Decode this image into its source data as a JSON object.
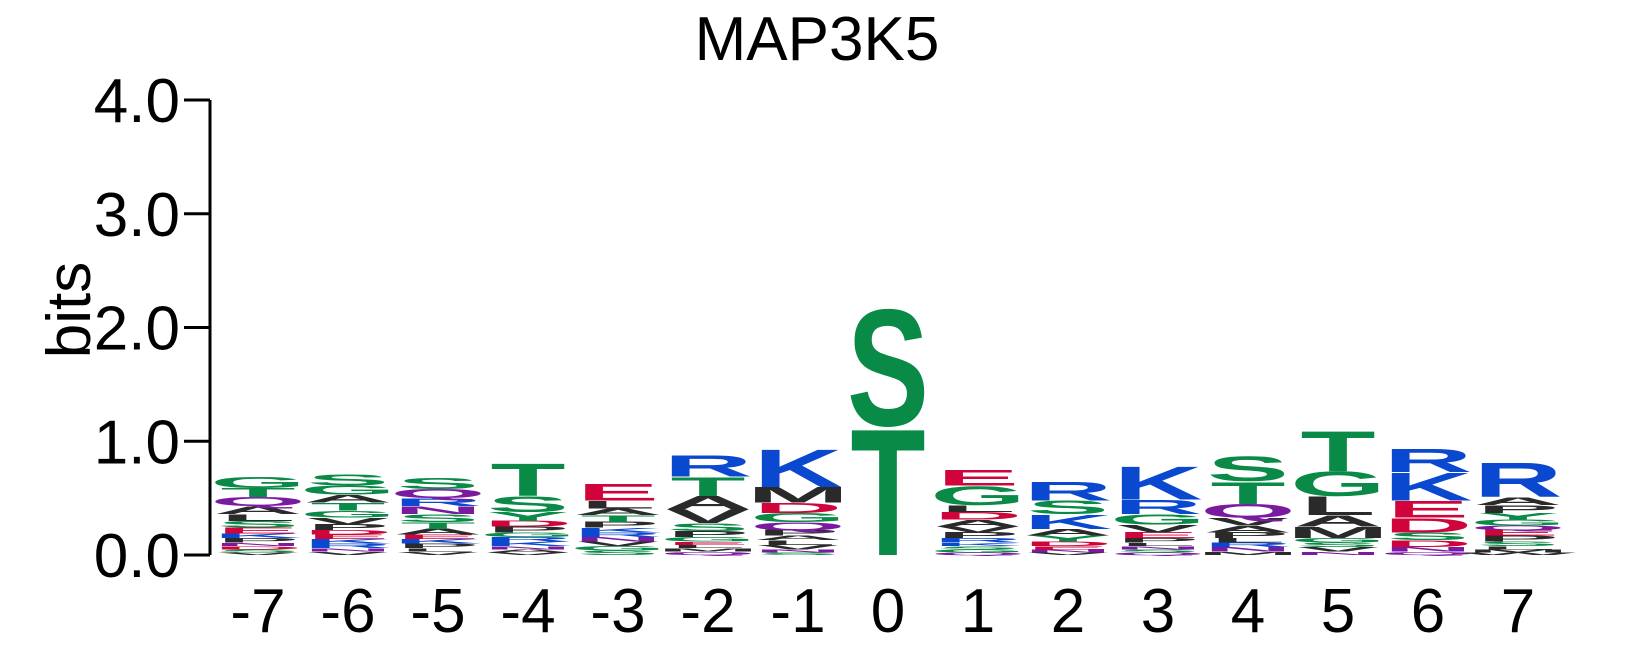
{
  "chart_data": {
    "type": "sequence-logo",
    "title": "MAP3K5",
    "ylabel": "bits",
    "ylim": [
      0,
      4
    ],
    "yticks": [
      "0.0",
      "1.0",
      "2.0",
      "3.0",
      "4.0"
    ],
    "positions": [
      "-7",
      "-6",
      "-5",
      "-4",
      "-3",
      "-2",
      "-1",
      "0",
      "1",
      "2",
      "3",
      "4",
      "5",
      "6",
      "7"
    ],
    "colors": {
      "acidic": "#d0043b",
      "basic": "#0a48d0",
      "polar": "#0a8a47",
      "hydrophobic": "#2a2a2a",
      "amide": "#7a1aa0",
      "residue_color": {
        "D": "#d0043b",
        "E": "#d0043b",
        "K": "#0a48d0",
        "R": "#0a48d0",
        "H": "#0a48d0",
        "S": "#0a8a47",
        "T": "#0a8a47",
        "G": "#0a8a47",
        "Y": "#0a8a47",
        "C": "#0a8a47",
        "N": "#7a1aa0",
        "Q": "#7a1aa0",
        "A": "#2a2a2a",
        "V": "#2a2a2a",
        "L": "#2a2a2a",
        "I": "#2a2a2a",
        "M": "#2a2a2a",
        "P": "#2a2a2a",
        "F": "#2a2a2a",
        "W": "#2a2a2a"
      }
    },
    "stacks": [
      [
        [
          "V",
          0.02
        ],
        [
          "S",
          0.03
        ],
        [
          "D",
          0.03
        ],
        [
          "N",
          0.03
        ],
        [
          "P",
          0.04
        ],
        [
          "K",
          0.04
        ],
        [
          "E",
          0.05
        ],
        [
          "S",
          0.06
        ],
        [
          "L",
          0.06
        ],
        [
          "A",
          0.07
        ],
        [
          "Q",
          0.08
        ],
        [
          "T",
          0.08
        ],
        [
          "G",
          0.1
        ]
      ],
      [
        [
          "V",
          0.03
        ],
        [
          "N",
          0.03
        ],
        [
          "R",
          0.04
        ],
        [
          "K",
          0.04
        ],
        [
          "E",
          0.04
        ],
        [
          "D",
          0.04
        ],
        [
          "P",
          0.05
        ],
        [
          "V",
          0.06
        ],
        [
          "G",
          0.06
        ],
        [
          "T",
          0.07
        ],
        [
          "A",
          0.07
        ],
        [
          "G",
          0.08
        ],
        [
          "S",
          0.1
        ]
      ],
      [
        [
          "V",
          0.03
        ],
        [
          "L",
          0.03
        ],
        [
          "P",
          0.04
        ],
        [
          "K",
          0.04
        ],
        [
          "E",
          0.04
        ],
        [
          "A",
          0.05
        ],
        [
          "T",
          0.06
        ],
        [
          "S",
          0.07
        ],
        [
          "N",
          0.07
        ],
        [
          "R",
          0.07
        ],
        [
          "Q",
          0.08
        ],
        [
          "S",
          0.1
        ]
      ],
      [
        [
          "V",
          0.02
        ],
        [
          "A",
          0.03
        ],
        [
          "N",
          0.03
        ],
        [
          "K",
          0.04
        ],
        [
          "R",
          0.04
        ],
        [
          "G",
          0.04
        ],
        [
          "P",
          0.05
        ],
        [
          "D",
          0.05
        ],
        [
          "Y",
          0.08
        ],
        [
          "S",
          0.14
        ],
        [
          "T",
          0.29
        ]
      ],
      [
        [
          "S",
          0.04
        ],
        [
          "G",
          0.04
        ],
        [
          "V",
          0.04
        ],
        [
          "N",
          0.04
        ],
        [
          "R",
          0.04
        ],
        [
          "K",
          0.04
        ],
        [
          "P",
          0.05
        ],
        [
          "T",
          0.06
        ],
        [
          "A",
          0.06
        ],
        [
          "L",
          0.07
        ],
        [
          "E",
          0.15
        ]
      ],
      [
        [
          "Q",
          0.03
        ],
        [
          "M",
          0.03
        ],
        [
          "L",
          0.03
        ],
        [
          "E",
          0.03
        ],
        [
          "G",
          0.04
        ],
        [
          "P",
          0.05
        ],
        [
          "S",
          0.07
        ],
        [
          "V",
          0.12
        ],
        [
          "A",
          0.12
        ],
        [
          "T",
          0.17
        ],
        [
          "R",
          0.19
        ]
      ],
      [
        [
          "S",
          0.02
        ],
        [
          "N",
          0.03
        ],
        [
          "V",
          0.04
        ],
        [
          "L",
          0.04
        ],
        [
          "A",
          0.04
        ],
        [
          "P",
          0.05
        ],
        [
          "Q",
          0.07
        ],
        [
          "G",
          0.08
        ],
        [
          "D",
          0.09
        ],
        [
          "M",
          0.14
        ],
        [
          "K",
          0.34
        ]
      ],
      [
        [
          "T",
          1.14
        ],
        [
          "S",
          1.05
        ]
      ],
      [
        [
          "Q",
          0.02
        ],
        [
          "G",
          0.03
        ],
        [
          "S",
          0.03
        ],
        [
          "K",
          0.03
        ],
        [
          "R",
          0.04
        ],
        [
          "P",
          0.05
        ],
        [
          "V",
          0.05
        ],
        [
          "A",
          0.06
        ],
        [
          "D",
          0.07
        ],
        [
          "L",
          0.06
        ],
        [
          "G",
          0.17
        ],
        [
          "E",
          0.14
        ]
      ],
      [
        [
          "V",
          0.02
        ],
        [
          "N",
          0.03
        ],
        [
          "E",
          0.03
        ],
        [
          "D",
          0.04
        ],
        [
          "Y",
          0.05
        ],
        [
          "A",
          0.06
        ],
        [
          "K",
          0.13
        ],
        [
          "S",
          0.12
        ],
        [
          "R",
          0.17
        ]
      ],
      [
        [
          "Q",
          0.02
        ],
        [
          "S",
          0.03
        ],
        [
          "N",
          0.03
        ],
        [
          "L",
          0.03
        ],
        [
          "P",
          0.04
        ],
        [
          "E",
          0.05
        ],
        [
          "V",
          0.07
        ],
        [
          "G",
          0.09
        ],
        [
          "R",
          0.13
        ],
        [
          "K",
          0.3
        ]
      ],
      [
        [
          "M",
          0.03
        ],
        [
          "N",
          0.04
        ],
        [
          "R",
          0.04
        ],
        [
          "L",
          0.04
        ],
        [
          "P",
          0.05
        ],
        [
          "A",
          0.06
        ],
        [
          "V",
          0.07
        ],
        [
          "Q",
          0.12
        ],
        [
          "T",
          0.2
        ],
        [
          "S",
          0.22
        ]
      ],
      [
        [
          "N",
          0.03
        ],
        [
          "V",
          0.04
        ],
        [
          "S",
          0.04
        ],
        [
          "G",
          0.04
        ],
        [
          "M",
          0.1
        ],
        [
          "A",
          0.1
        ],
        [
          "L",
          0.17
        ],
        [
          "G",
          0.22
        ],
        [
          "T",
          0.36
        ]
      ],
      [
        [
          "Q",
          0.03
        ],
        [
          "N",
          0.04
        ],
        [
          "D",
          0.06
        ],
        [
          "S",
          0.07
        ],
        [
          "D",
          0.13
        ],
        [
          "E",
          0.15
        ],
        [
          "K",
          0.25
        ],
        [
          "R",
          0.21
        ]
      ],
      [
        [
          "W",
          0.02
        ],
        [
          "M",
          0.03
        ],
        [
          "L",
          0.03
        ],
        [
          "S",
          0.04
        ],
        [
          "P",
          0.05
        ],
        [
          "E",
          0.05
        ],
        [
          "Q",
          0.04
        ],
        [
          "G",
          0.05
        ],
        [
          "Y",
          0.06
        ],
        [
          "P",
          0.07
        ],
        [
          "A",
          0.07
        ],
        [
          "R",
          0.31
        ]
      ]
    ]
  }
}
